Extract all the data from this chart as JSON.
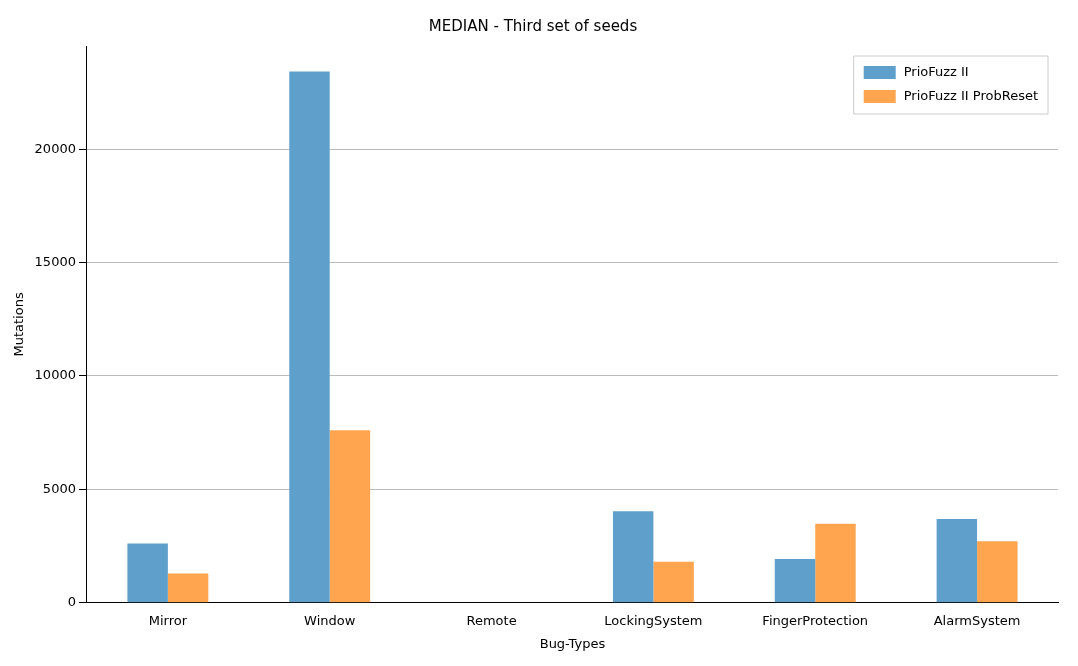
{
  "chart_data": {
    "type": "bar",
    "title": "MEDIAN - Third set of seeds",
    "xlabel": "Bug-Types",
    "ylabel": "Mutations",
    "categories": [
      "Mirror",
      "Window",
      "Remote",
      "LockingSystem",
      "FingerProtection",
      "AlarmSystem"
    ],
    "series": [
      {
        "name": "PrioFuzz II",
        "color": "#5f9fcc",
        "values": [
          2620,
          23430,
          0,
          4040,
          1930,
          3700
        ]
      },
      {
        "name": "PrioFuzz II ProbReset",
        "color": "#ffa54f",
        "values": [
          1290,
          7610,
          0,
          1810,
          3480,
          2710
        ]
      }
    ],
    "ylim": [
      0,
      24550
    ],
    "yticks": [
      0,
      5000,
      10000,
      15000,
      20000
    ],
    "grid": "y",
    "legend": "top right"
  }
}
